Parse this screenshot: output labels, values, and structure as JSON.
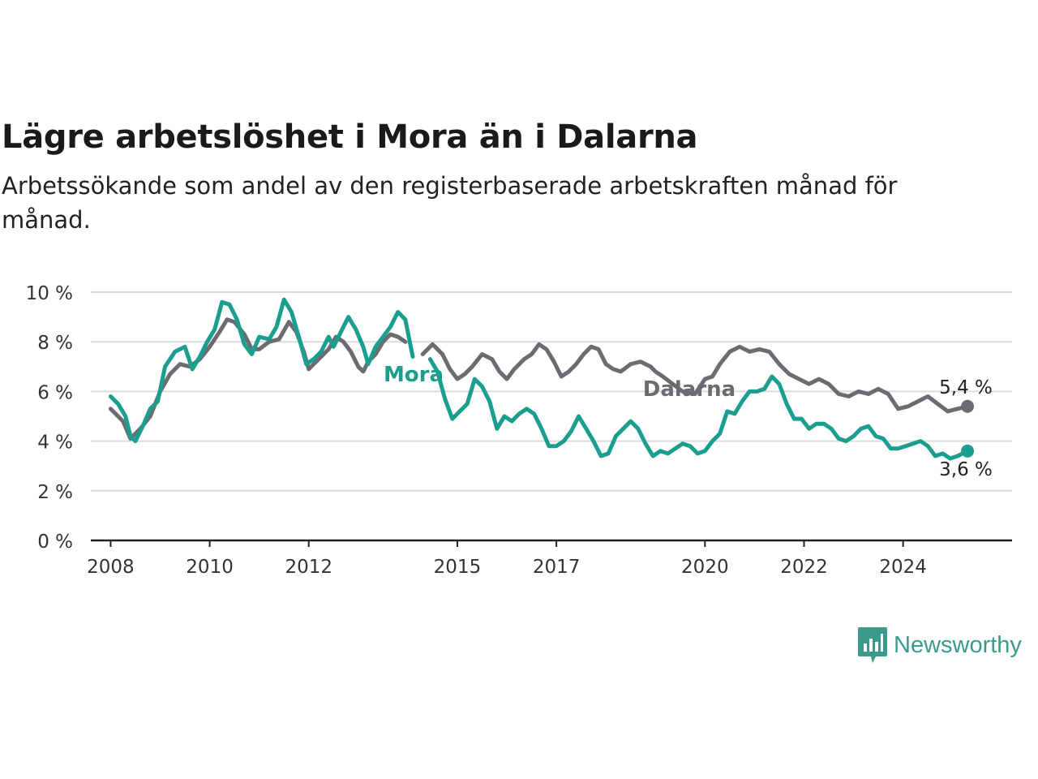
{
  "title": "Lägre arbetslöshet i Mora än i Dalarna",
  "subtitle": "Arbetssökande som andel av den registerbaserade arbetskraften månad för månad.",
  "brand": {
    "name": "Newsworthy",
    "icon": "newsworthy-bar-chart-icon",
    "color": "#3a9a8c"
  },
  "chart_data": {
    "type": "line",
    "title": "Lägre arbetslöshet i Mora än i Dalarna",
    "xlabel": "",
    "ylabel": "",
    "xlim": [
      2007.6,
      2026.2
    ],
    "ylim": [
      0,
      10
    ],
    "x_ticks": [
      2008,
      2010,
      2012,
      2015,
      2017,
      2020,
      2022,
      2024
    ],
    "x_tick_labels": [
      "2008",
      "2010",
      "2012",
      "2015",
      "2017",
      "2020",
      "2022",
      "2024"
    ],
    "y_ticks": [
      0,
      2,
      4,
      6,
      8,
      10
    ],
    "y_tick_labels": [
      "0 %",
      "2 %",
      "4 %",
      "6 %",
      "8 %",
      "10 %"
    ],
    "grid": true,
    "legend": "inline-labels",
    "series": [
      {
        "name": "Dalarna",
        "color": "#6c6b70",
        "end_label": "5,4 %",
        "points": [
          [
            2008.0,
            5.3
          ],
          [
            2008.25,
            4.8
          ],
          [
            2008.4,
            4.1
          ],
          [
            2008.6,
            4.5
          ],
          [
            2008.8,
            5.0
          ],
          [
            2009.0,
            6.0
          ],
          [
            2009.2,
            6.7
          ],
          [
            2009.4,
            7.1
          ],
          [
            2009.6,
            7.0
          ],
          [
            2009.8,
            7.3
          ],
          [
            2010.0,
            7.8
          ],
          [
            2010.2,
            8.4
          ],
          [
            2010.35,
            8.9
          ],
          [
            2010.5,
            8.8
          ],
          [
            2010.7,
            8.3
          ],
          [
            2010.85,
            7.7
          ],
          [
            2011.0,
            7.7
          ],
          [
            2011.2,
            8.0
          ],
          [
            2011.4,
            8.1
          ],
          [
            2011.6,
            8.8
          ],
          [
            2011.75,
            8.4
          ],
          [
            2011.9,
            7.6
          ],
          [
            2012.0,
            6.9
          ],
          [
            2012.2,
            7.3
          ],
          [
            2012.4,
            7.7
          ],
          [
            2012.55,
            8.2
          ],
          [
            2012.7,
            8.0
          ],
          [
            2012.85,
            7.6
          ],
          [
            2013.0,
            7.0
          ],
          [
            2013.1,
            6.8
          ],
          [
            2013.2,
            7.2
          ],
          [
            2013.35,
            7.5
          ],
          [
            2013.5,
            8.0
          ],
          [
            2013.65,
            8.3
          ],
          [
            2013.8,
            8.2
          ],
          [
            2013.95,
            8.0
          ],
          [
            2014.3,
            7.5
          ],
          [
            2014.5,
            7.9
          ],
          [
            2014.7,
            7.5
          ],
          [
            2014.85,
            6.9
          ],
          [
            2015.0,
            6.5
          ],
          [
            2015.15,
            6.7
          ],
          [
            2015.3,
            7.0
          ],
          [
            2015.5,
            7.5
          ],
          [
            2015.7,
            7.3
          ],
          [
            2015.85,
            6.8
          ],
          [
            2016.0,
            6.5
          ],
          [
            2016.15,
            6.9
          ],
          [
            2016.35,
            7.3
          ],
          [
            2016.5,
            7.5
          ],
          [
            2016.65,
            7.9
          ],
          [
            2016.8,
            7.7
          ],
          [
            2016.95,
            7.2
          ],
          [
            2017.1,
            6.6
          ],
          [
            2017.25,
            6.8
          ],
          [
            2017.4,
            7.1
          ],
          [
            2017.55,
            7.5
          ],
          [
            2017.7,
            7.8
          ],
          [
            2017.85,
            7.7
          ],
          [
            2018.0,
            7.1
          ],
          [
            2018.15,
            6.9
          ],
          [
            2018.3,
            6.8
          ],
          [
            2018.5,
            7.1
          ],
          [
            2018.7,
            7.2
          ],
          [
            2018.9,
            7.0
          ],
          [
            2019.0,
            6.8
          ],
          [
            2019.15,
            6.6
          ],
          [
            2019.35,
            6.3
          ],
          [
            2019.55,
            6.0
          ],
          [
            2019.8,
            5.9
          ],
          [
            2020.0,
            6.5
          ],
          [
            2020.15,
            6.6
          ],
          [
            2020.3,
            7.1
          ],
          [
            2020.5,
            7.6
          ],
          [
            2020.7,
            7.8
          ],
          [
            2020.9,
            7.6
          ],
          [
            2021.1,
            7.7
          ],
          [
            2021.3,
            7.6
          ],
          [
            2021.5,
            7.1
          ],
          [
            2021.7,
            6.7
          ],
          [
            2021.9,
            6.5
          ],
          [
            2022.1,
            6.3
          ],
          [
            2022.3,
            6.5
          ],
          [
            2022.5,
            6.3
          ],
          [
            2022.7,
            5.9
          ],
          [
            2022.9,
            5.8
          ],
          [
            2023.1,
            6.0
          ],
          [
            2023.3,
            5.9
          ],
          [
            2023.5,
            6.1
          ],
          [
            2023.7,
            5.9
          ],
          [
            2023.9,
            5.3
          ],
          [
            2024.1,
            5.4
          ],
          [
            2024.3,
            5.6
          ],
          [
            2024.5,
            5.8
          ],
          [
            2024.7,
            5.5
          ],
          [
            2024.9,
            5.2
          ],
          [
            2025.1,
            5.3
          ],
          [
            2025.3,
            5.4
          ]
        ]
      },
      {
        "name": "Mora",
        "color": "#1a9e8f",
        "end_label": "3,6 %",
        "points": [
          [
            2008.0,
            5.8
          ],
          [
            2008.15,
            5.5
          ],
          [
            2008.3,
            5.0
          ],
          [
            2008.4,
            4.2
          ],
          [
            2008.5,
            4.0
          ],
          [
            2008.65,
            4.6
          ],
          [
            2008.8,
            5.3
          ],
          [
            2008.95,
            5.6
          ],
          [
            2009.1,
            7.0
          ],
          [
            2009.3,
            7.6
          ],
          [
            2009.5,
            7.8
          ],
          [
            2009.65,
            6.9
          ],
          [
            2009.8,
            7.4
          ],
          [
            2009.95,
            8.0
          ],
          [
            2010.1,
            8.5
          ],
          [
            2010.25,
            9.6
          ],
          [
            2010.4,
            9.5
          ],
          [
            2010.55,
            8.9
          ],
          [
            2010.7,
            7.9
          ],
          [
            2010.85,
            7.5
          ],
          [
            2011.0,
            8.2
          ],
          [
            2011.2,
            8.1
          ],
          [
            2011.35,
            8.6
          ],
          [
            2011.5,
            9.7
          ],
          [
            2011.65,
            9.2
          ],
          [
            2011.8,
            8.2
          ],
          [
            2011.95,
            7.1
          ],
          [
            2012.1,
            7.3
          ],
          [
            2012.25,
            7.6
          ],
          [
            2012.4,
            8.2
          ],
          [
            2012.5,
            7.8
          ],
          [
            2012.65,
            8.4
          ],
          [
            2012.8,
            9.0
          ],
          [
            2012.95,
            8.5
          ],
          [
            2013.1,
            7.8
          ],
          [
            2013.2,
            7.1
          ],
          [
            2013.35,
            7.8
          ],
          [
            2013.5,
            8.2
          ],
          [
            2013.65,
            8.6
          ],
          [
            2013.8,
            9.2
          ],
          [
            2013.95,
            8.9
          ],
          [
            2014.1,
            7.4
          ],
          [
            2014.45,
            7.3
          ],
          [
            2014.6,
            6.8
          ],
          [
            2014.75,
            5.7
          ],
          [
            2014.9,
            4.9
          ],
          [
            2015.05,
            5.2
          ],
          [
            2015.2,
            5.5
          ],
          [
            2015.35,
            6.5
          ],
          [
            2015.5,
            6.2
          ],
          [
            2015.65,
            5.6
          ],
          [
            2015.8,
            4.5
          ],
          [
            2015.95,
            5.0
          ],
          [
            2016.1,
            4.8
          ],
          [
            2016.25,
            5.1
          ],
          [
            2016.4,
            5.3
          ],
          [
            2016.55,
            5.1
          ],
          [
            2016.7,
            4.5
          ],
          [
            2016.85,
            3.8
          ],
          [
            2017.0,
            3.8
          ],
          [
            2017.15,
            4.0
          ],
          [
            2017.3,
            4.4
          ],
          [
            2017.45,
            5.0
          ],
          [
            2017.6,
            4.5
          ],
          [
            2017.75,
            4.0
          ],
          [
            2017.9,
            3.4
          ],
          [
            2018.05,
            3.5
          ],
          [
            2018.2,
            4.2
          ],
          [
            2018.35,
            4.5
          ],
          [
            2018.5,
            4.8
          ],
          [
            2018.65,
            4.5
          ],
          [
            2018.8,
            3.9
          ],
          [
            2018.95,
            3.4
          ],
          [
            2019.1,
            3.6
          ],
          [
            2019.25,
            3.5
          ],
          [
            2019.4,
            3.7
          ],
          [
            2019.55,
            3.9
          ],
          [
            2019.7,
            3.8
          ],
          [
            2019.85,
            3.5
          ],
          [
            2020.0,
            3.6
          ],
          [
            2020.15,
            4.0
          ],
          [
            2020.3,
            4.3
          ],
          [
            2020.45,
            5.2
          ],
          [
            2020.6,
            5.1
          ],
          [
            2020.75,
            5.6
          ],
          [
            2020.9,
            6.0
          ],
          [
            2021.05,
            6.0
          ],
          [
            2021.2,
            6.1
          ],
          [
            2021.35,
            6.6
          ],
          [
            2021.5,
            6.3
          ],
          [
            2021.65,
            5.5
          ],
          [
            2021.8,
            4.9
          ],
          [
            2021.95,
            4.9
          ],
          [
            2022.1,
            4.5
          ],
          [
            2022.25,
            4.7
          ],
          [
            2022.4,
            4.7
          ],
          [
            2022.55,
            4.5
          ],
          [
            2022.7,
            4.1
          ],
          [
            2022.85,
            4.0
          ],
          [
            2023.0,
            4.2
          ],
          [
            2023.15,
            4.5
          ],
          [
            2023.3,
            4.6
          ],
          [
            2023.45,
            4.2
          ],
          [
            2023.6,
            4.1
          ],
          [
            2023.75,
            3.7
          ],
          [
            2023.9,
            3.7
          ],
          [
            2024.05,
            3.8
          ],
          [
            2024.2,
            3.9
          ],
          [
            2024.35,
            4.0
          ],
          [
            2024.5,
            3.8
          ],
          [
            2024.65,
            3.4
          ],
          [
            2024.8,
            3.5
          ],
          [
            2024.95,
            3.3
          ],
          [
            2025.1,
            3.4
          ],
          [
            2025.3,
            3.6
          ]
        ]
      }
    ]
  }
}
